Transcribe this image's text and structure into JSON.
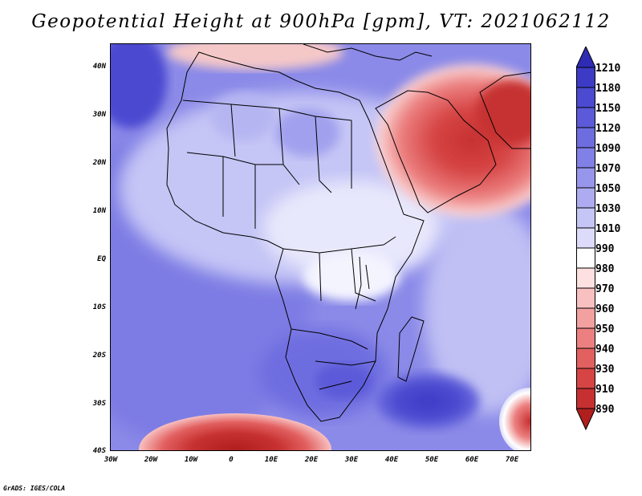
{
  "title": "Geopotential Height at 900hPa [gpm], VT: 2021062112",
  "credit": "GrADS: IGES/COLA",
  "map": {
    "region": "Africa and Arabian Peninsula",
    "variable": "Geopotential Height",
    "level": "900hPa",
    "units": "gpm",
    "valid_time": "2021062112"
  },
  "lat_labels": [
    "40N",
    "30N",
    "20N",
    "10N",
    "EQ",
    "10S",
    "20S",
    "30S",
    "40S"
  ],
  "lon_labels": [
    "30W",
    "20W",
    "10W",
    "0",
    "10E",
    "20E",
    "30E",
    "40E",
    "50E",
    "60E",
    "70E"
  ],
  "colorbar": {
    "levels": [
      "1210",
      "1180",
      "1150",
      "1120",
      "1090",
      "1070",
      "1050",
      "1030",
      "1010",
      "990",
      "980",
      "970",
      "960",
      "950",
      "940",
      "930",
      "910",
      "890"
    ],
    "colors": [
      "#2f2bb4",
      "#3d3bc6",
      "#4b4ad0",
      "#5c5ad8",
      "#6e6de0",
      "#8180e6",
      "#9796ec",
      "#adacf1",
      "#c5c5f6",
      "#dcdcfa",
      "#ffffff",
      "#fde0e0",
      "#f8c0c0",
      "#f2a0a0",
      "#ec8080",
      "#e26060",
      "#d64444",
      "#c63030",
      "#b01e1e"
    ]
  }
}
